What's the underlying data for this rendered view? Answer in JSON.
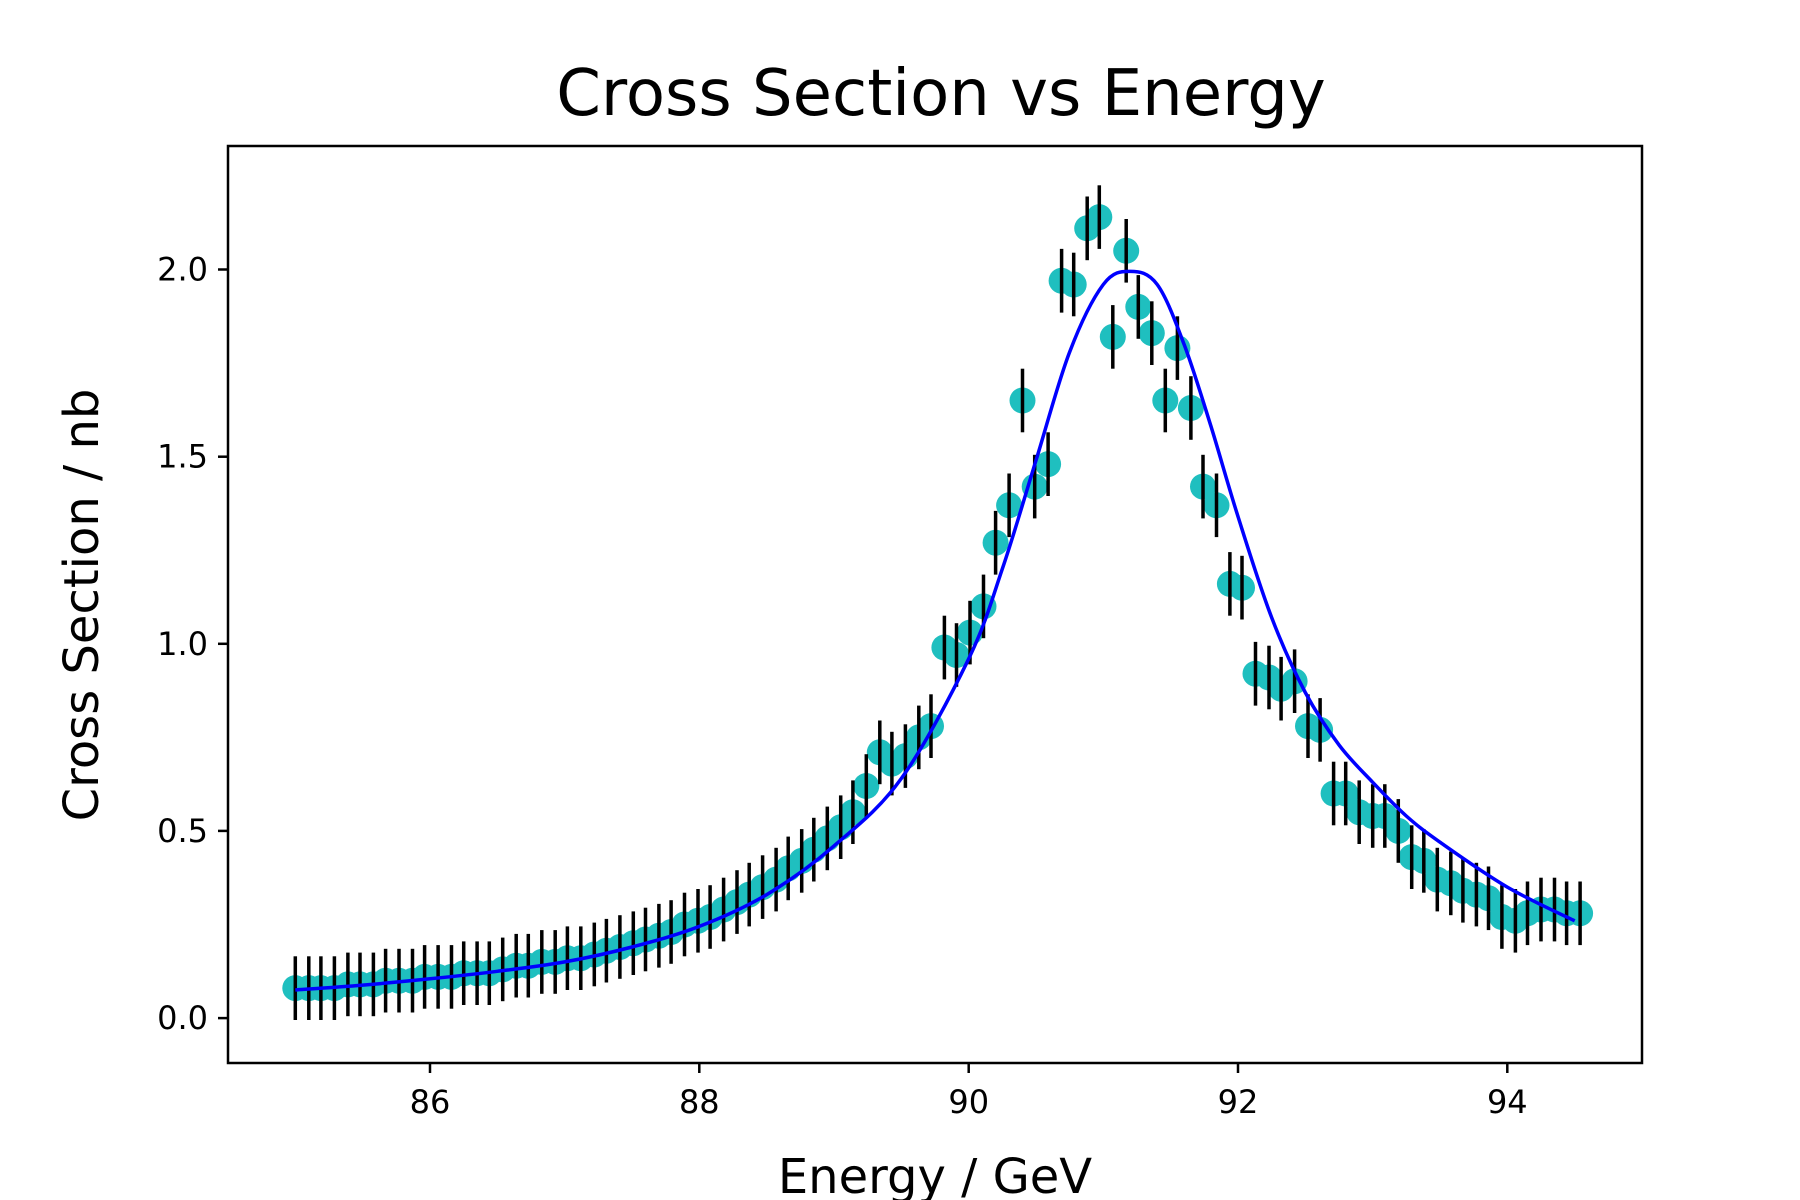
{
  "chart_data": {
    "type": "scatter",
    "title": "Cross Section vs Energy",
    "xlabel": "Energy / GeV",
    "ylabel": "Cross Section / nb",
    "xlim": [
      84.5,
      95.0
    ],
    "ylim": [
      -0.12,
      2.33
    ],
    "xticks": [
      86,
      88,
      90,
      92,
      94
    ],
    "yticks": [
      0.0,
      0.5,
      1.0,
      1.5,
      2.0
    ],
    "xtick_labels": [
      "86",
      "88",
      "90",
      "92",
      "94"
    ],
    "ytick_labels": [
      "0.0",
      "0.5",
      "1.0",
      "1.5",
      "2.0"
    ],
    "grid": false,
    "legend": "none",
    "series": [
      {
        "kind": "points-with-error-bars",
        "marker_color": "#1fbfbf",
        "errorbar_color": "#000000",
        "x": [
          85.0,
          85.1,
          85.19,
          85.29,
          85.39,
          85.48,
          85.58,
          85.67,
          85.77,
          85.87,
          85.96,
          86.06,
          86.16,
          86.25,
          86.35,
          86.44,
          86.54,
          86.64,
          86.73,
          86.83,
          86.93,
          87.02,
          87.12,
          87.22,
          87.31,
          87.41,
          87.51,
          87.6,
          87.7,
          87.79,
          87.89,
          87.99,
          88.08,
          88.18,
          88.28,
          88.37,
          88.47,
          88.57,
          88.66,
          88.76,
          88.85,
          88.95,
          89.05,
          89.14,
          89.24,
          89.34,
          89.43,
          89.53,
          89.63,
          89.72,
          89.82,
          89.91,
          90.01,
          90.11,
          90.2,
          90.3,
          90.4,
          90.49,
          90.59,
          90.69,
          90.78,
          90.88,
          90.97,
          91.07,
          91.17,
          91.26,
          91.36,
          91.46,
          91.55,
          91.65,
          91.74,
          91.84,
          91.94,
          92.03,
          92.13,
          92.23,
          92.32,
          92.42,
          92.52,
          92.61,
          92.71,
          92.8,
          92.9,
          93.0,
          93.09,
          93.19,
          93.29,
          93.38,
          93.48,
          93.58,
          93.67,
          93.77,
          93.86,
          93.96,
          94.06,
          94.15,
          94.25,
          94.35,
          94.44,
          94.54
        ],
        "y": [
          0.08,
          0.08,
          0.08,
          0.08,
          0.09,
          0.09,
          0.09,
          0.1,
          0.1,
          0.1,
          0.11,
          0.11,
          0.11,
          0.12,
          0.12,
          0.12,
          0.13,
          0.14,
          0.14,
          0.15,
          0.15,
          0.16,
          0.16,
          0.17,
          0.18,
          0.19,
          0.2,
          0.21,
          0.22,
          0.23,
          0.25,
          0.26,
          0.27,
          0.29,
          0.31,
          0.33,
          0.35,
          0.37,
          0.4,
          0.42,
          0.45,
          0.48,
          0.51,
          0.55,
          0.62,
          0.71,
          0.68,
          0.7,
          0.75,
          0.78,
          0.99,
          0.97,
          1.03,
          1.1,
          1.27,
          1.37,
          1.65,
          1.42,
          1.48,
          1.97,
          1.96,
          2.11,
          2.14,
          1.82,
          2.05,
          1.9,
          1.83,
          1.65,
          1.79,
          1.63,
          1.42,
          1.37,
          1.16,
          1.15,
          0.92,
          0.91,
          0.88,
          0.9,
          0.78,
          0.77,
          0.6,
          0.6,
          0.55,
          0.54,
          0.54,
          0.5,
          0.43,
          0.42,
          0.37,
          0.36,
          0.34,
          0.33,
          0.32,
          0.27,
          0.26,
          0.28,
          0.29,
          0.29,
          0.28,
          0.28
        ],
        "yerr": 0.085
      },
      {
        "kind": "fit-line",
        "color": "#0000ff",
        "x": [
          85.0,
          85.5,
          86.0,
          86.5,
          87.0,
          87.5,
          88.0,
          88.5,
          89.0,
          89.5,
          90.0,
          90.25,
          90.5,
          90.75,
          91.0,
          91.2,
          91.4,
          91.6,
          91.8,
          92.0,
          92.25,
          92.5,
          92.75,
          93.0,
          93.25,
          93.5,
          94.0,
          94.5
        ],
        "y": [
          0.075,
          0.088,
          0.105,
          0.125,
          0.15,
          0.19,
          0.245,
          0.33,
          0.46,
          0.64,
          0.96,
          1.2,
          1.49,
          1.78,
          1.96,
          1.995,
          1.96,
          1.8,
          1.58,
          1.34,
          1.07,
          0.87,
          0.73,
          0.63,
          0.54,
          0.47,
          0.35,
          0.26
        ]
      }
    ]
  }
}
